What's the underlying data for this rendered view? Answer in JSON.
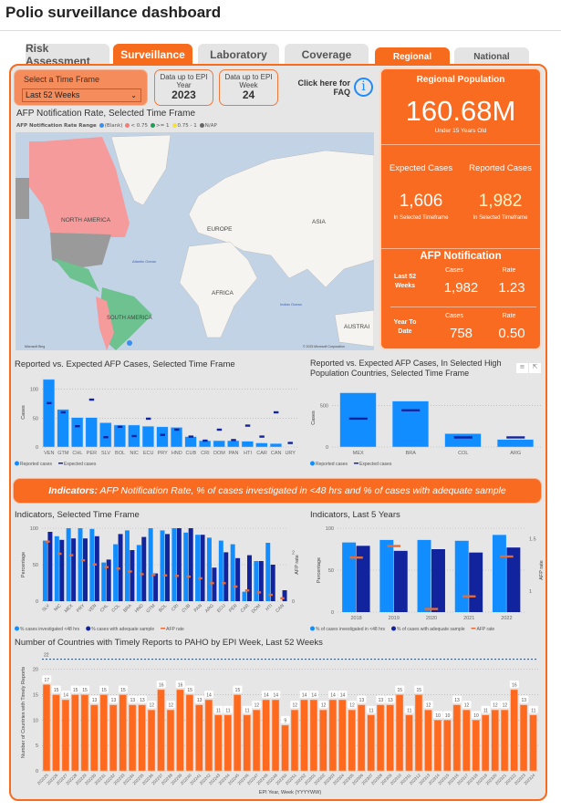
{
  "title": "Polio surveillance dashboard",
  "tabs": [
    {
      "label": "Risk Assessment",
      "active": false
    },
    {
      "label": "Surveillance",
      "active": true
    },
    {
      "label": "Laboratory",
      "active": false
    },
    {
      "label": "Coverage",
      "active": false
    }
  ],
  "scope_tabs": [
    {
      "label": "Regional",
      "active": true
    },
    {
      "label": "National",
      "active": false
    }
  ],
  "colors": {
    "accent": "#f96b20",
    "reported": "#118dff",
    "expected": "#12239e",
    "afp_rate": "#e66c37",
    "map_ocean": "#c3d3e6"
  },
  "time_frame": {
    "label": "Select a Time Frame",
    "value": "Last 52 Weeks",
    "icon": "chevron-down-icon"
  },
  "epi_year": {
    "label": "Data up to EPI Year",
    "value": "2023"
  },
  "epi_week": {
    "label": "Data up to EPI Week",
    "value": "24"
  },
  "faq": {
    "label": "Click here for FAQ",
    "icon": "info-icon"
  },
  "map": {
    "title": "AFP Notification Rate, Selected Time Frame",
    "legend_title": "AFP Notification Rate Range",
    "legend": [
      {
        "label": "(Blank)",
        "color": "#3a8ef0"
      },
      {
        "label": "< 0.75",
        "color": "#f47b7b"
      },
      {
        "label": ">= 1",
        "color": "#1b9e55"
      },
      {
        "label": "0.75 - 1",
        "color": "#f2e33a"
      },
      {
        "label": "N/AP",
        "color": "#666666"
      }
    ],
    "labels": {
      "na": "NORTH AMERICA",
      "sa": "SOUTH AMERICA",
      "eu": "EUROPE",
      "as": "ASIA",
      "af": "AFRICA",
      "au": "AUSTRAI",
      "atl": "Atlantic Ocean",
      "ind": "Indian Ocean"
    },
    "attribution": "© 2023 Microsoft Corporation",
    "brand": "Microsoft Bing"
  },
  "kpi": {
    "pop_title": "Regional Population",
    "pop_value": "160.68M",
    "pop_sub": "Under 15 Years Old",
    "expected_title": "Expected Cases",
    "expected_value": "1,606",
    "expected_sub": "In Selected Timeframe",
    "reported_title": "Reported Cases",
    "reported_value": "1,982",
    "reported_sub": "In Selected Timeframe",
    "afp_title": "AFP Notification",
    "cases_label": "Cases",
    "rate_label": "Rate",
    "rows": [
      {
        "label": "Last 52 Weeks",
        "cases": "1,982",
        "rate": "1.23"
      },
      {
        "label": "Year To Date",
        "cases": "758",
        "rate": "0.50"
      }
    ]
  },
  "banner": {
    "bold": "Indicators:",
    "text": " AFP Notification Rate, % of cases investigated in <48 hrs and % of cases with adequate sample"
  },
  "chart_data": [
    {
      "id": "c1",
      "type": "bar",
      "title": "Reported vs. Expected AFP Cases, Selected Time Frame",
      "ylabel": "Cases",
      "ylim": [
        0,
        120
      ],
      "yticks": [
        0,
        50,
        100
      ],
      "categories": [
        "VEN",
        "GTM",
        "CHL",
        "PER",
        "SLV",
        "BOL",
        "NIC",
        "ECU",
        "PRY",
        "HND",
        "CUB",
        "CRI",
        "DOM",
        "PAN",
        "HTI",
        "CAR",
        "CAN",
        "URY"
      ],
      "series": [
        {
          "name": "Reported cases",
          "kind": "bar",
          "values": [
            117,
            65,
            51,
            51,
            42,
            38,
            38,
            36,
            35,
            34,
            18,
            11,
            11,
            11,
            10,
            7,
            6,
            0
          ]
        },
        {
          "name": "Expected cases",
          "kind": "marker",
          "values": [
            76,
            60,
            36,
            82,
            17,
            35,
            19,
            49,
            21,
            30,
            18,
            11,
            30,
            12,
            37,
            18,
            60,
            7
          ]
        }
      ],
      "legend": "bottom-left"
    },
    {
      "id": "c2",
      "type": "bar",
      "title": "Reported vs. Expected AFP Cases, In Selected High Population Countries, Selected Time Frame",
      "ylabel": "Cases",
      "ylim": [
        0,
        700
      ],
      "yticks": [
        0,
        500
      ],
      "categories": [
        "MEX",
        "BRA",
        "COL",
        "ARG"
      ],
      "series": [
        {
          "name": "Reported cases",
          "kind": "bar",
          "values": [
            650,
            550,
            160,
            90
          ]
        },
        {
          "name": "Expected cases",
          "kind": "marker",
          "values": [
            340,
            440,
            115,
            115
          ]
        }
      ],
      "legend": "bottom-left"
    },
    {
      "id": "c3",
      "type": "bar",
      "title": "Indicators, Selected Time Frame",
      "ylabel": "Percentage",
      "y2label": "AFP rate",
      "ylim": [
        0,
        100
      ],
      "yticks": [
        0,
        50,
        100
      ],
      "y2lim": [
        0,
        3
      ],
      "y2ticks": [
        0,
        2
      ],
      "categories": [
        "SLV",
        "NIC",
        "MEX",
        "PRY",
        "VEN",
        "CHL",
        "COL",
        "BRA",
        "HND",
        "GTM",
        "BOL",
        "CRI",
        "CUB",
        "PAN",
        "ARG",
        "ECU",
        "PER",
        "CAR",
        "DOM",
        "HTI",
        "CAN"
      ],
      "series": [
        {
          "name": "% cases investigated <48 hrs",
          "kind": "bar",
          "values": [
            83,
            89,
            100,
            100,
            99,
            53,
            78,
            97,
            77,
            100,
            97,
            100,
            94,
            91,
            87,
            83,
            78,
            13,
            55,
            80,
            0
          ]
        },
        {
          "name": "% cases with adequate sample",
          "kind": "bar",
          "values": [
            95,
            84,
            86,
            86,
            89,
            57,
            92,
            70,
            88,
            38,
            92,
            100,
            100,
            91,
            46,
            67,
            59,
            63,
            55,
            50,
            15
          ]
        },
        {
          "name": "AFP rate",
          "kind": "marker",
          "axis": "y2",
          "values": [
            2.45,
            1.95,
            1.89,
            1.68,
            1.51,
            1.4,
            1.34,
            1.22,
            1.11,
            1.08,
            1.06,
            1.04,
            1.01,
            0.94,
            0.74,
            0.74,
            0.6,
            0.44,
            0.36,
            0.26,
            0.12
          ]
        }
      ],
      "legend": "bottom-left",
      "rotate": true
    },
    {
      "id": "c4",
      "type": "bar",
      "title": "Indicators, Last 5 Years",
      "ylabel": "Percentage",
      "y2label": "AFP rate",
      "ylim": [
        0,
        100
      ],
      "yticks": [
        0,
        50,
        100
      ],
      "y2lim": [
        0.8,
        1.6
      ],
      "y2ticks": [
        1.0,
        1.5
      ],
      "categories": [
        "2018",
        "2019",
        "2020",
        "2021",
        "2022"
      ],
      "series": [
        {
          "name": "% of cases investigated in <48 hrs",
          "kind": "bar",
          "values": [
            83,
            86,
            86,
            85,
            92
          ]
        },
        {
          "name": "% of cases with adequate sample",
          "kind": "bar",
          "values": [
            79,
            73,
            75,
            71,
            77
          ]
        },
        {
          "name": "AFP rate",
          "kind": "marker",
          "axis": "y2",
          "values": [
            1.32,
            1.43,
            0.83,
            0.95,
            1.33
          ]
        }
      ],
      "legend": "bottom-left"
    },
    {
      "id": "c5",
      "type": "bar",
      "title": "Number of Countries with Timely Reports to PAHO by EPI Week, Last 52 Weeks",
      "ylabel": "Number of Countries with Timely Reports",
      "xlabel": "EPI Year, Week (YYYYWW)",
      "ylim": [
        0,
        23
      ],
      "yticks": [
        0,
        5,
        10,
        15,
        20
      ],
      "reference_line": 22,
      "data_labels": true,
      "rotate": true,
      "categories": [
        "202225",
        "202226",
        "202227",
        "202228",
        "202229",
        "202230",
        "202231",
        "202232",
        "202233",
        "202234",
        "202235",
        "202236",
        "202237",
        "202238",
        "202239",
        "202240",
        "202241",
        "202242",
        "202243",
        "202244",
        "202245",
        "202246",
        "202247",
        "202248",
        "202249",
        "202250",
        "202251",
        "202252",
        "202301",
        "202302",
        "202303",
        "202304",
        "202305",
        "202306",
        "202307",
        "202308",
        "202309",
        "202310",
        "202311",
        "202312",
        "202313",
        "202314",
        "202315",
        "202316",
        "202317",
        "202318",
        "202319",
        "202320",
        "202321",
        "202322",
        "202323",
        "202324"
      ],
      "series": [
        {
          "name": "",
          "kind": "bar",
          "values": [
            17,
            15,
            14,
            15,
            15,
            13,
            15,
            13,
            15,
            13,
            13,
            12,
            16,
            12,
            16,
            15,
            13,
            14,
            11,
            11,
            15,
            11,
            12,
            14,
            14,
            9,
            12,
            14,
            14,
            12,
            14,
            14,
            12,
            13,
            11,
            13,
            13,
            15,
            11,
            15,
            12,
            10,
            10,
            13,
            12,
            10,
            11,
            12,
            12,
            16,
            13,
            11
          ]
        }
      ]
    }
  ]
}
